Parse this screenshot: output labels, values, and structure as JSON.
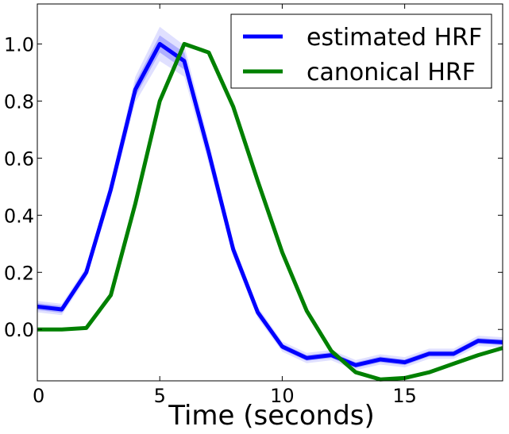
{
  "chart_data": {
    "type": "line",
    "title": "",
    "xlabel": "Time (seconds)",
    "ylabel": "",
    "xlim": [
      0,
      19
    ],
    "ylim": [
      -0.18,
      1.14
    ],
    "grid": false,
    "legend": "top-right",
    "x_ticks": [
      0,
      5,
      10,
      15
    ],
    "x_tick_labels": [
      "0",
      "5",
      "10",
      "15"
    ],
    "y_ticks": [
      0.0,
      0.2,
      0.4,
      0.6,
      0.8,
      1.0
    ],
    "y_tick_labels": [
      "0.0",
      "0.2",
      "0.4",
      "0.6",
      "0.8",
      "1.0"
    ],
    "x": [
      0,
      1,
      2,
      3,
      4,
      5,
      6,
      7,
      8,
      9,
      10,
      11,
      12,
      13,
      14,
      15,
      16,
      17,
      18,
      19
    ],
    "series": [
      {
        "name": "estimated HRF",
        "color": "#0000ff",
        "values": [
          0.08,
          0.07,
          0.2,
          0.49,
          0.84,
          1.0,
          0.94,
          0.62,
          0.28,
          0.06,
          -0.06,
          -0.1,
          -0.09,
          -0.125,
          -0.105,
          -0.115,
          -0.085,
          -0.085,
          -0.04,
          -0.045
        ],
        "band_inner": [
          0.012,
          0.012,
          0.012,
          0.015,
          0.025,
          0.03,
          0.03,
          0.022,
          0.015,
          0.012,
          0.01,
          0.01,
          0.01,
          0.01,
          0.01,
          0.01,
          0.01,
          0.01,
          0.01,
          0.01
        ],
        "band_outer": [
          0.02,
          0.02,
          0.02,
          0.03,
          0.045,
          0.06,
          0.055,
          0.04,
          0.025,
          0.02,
          0.018,
          0.018,
          0.018,
          0.018,
          0.018,
          0.018,
          0.018,
          0.018,
          0.018,
          0.018
        ]
      },
      {
        "name": "canonical HRF",
        "color": "#008000",
        "values": [
          0.0,
          0.0,
          0.005,
          0.12,
          0.44,
          0.8,
          1.0,
          0.97,
          0.78,
          0.52,
          0.27,
          0.065,
          -0.075,
          -0.15,
          -0.175,
          -0.17,
          -0.15,
          -0.12,
          -0.09,
          -0.065
        ]
      }
    ]
  }
}
